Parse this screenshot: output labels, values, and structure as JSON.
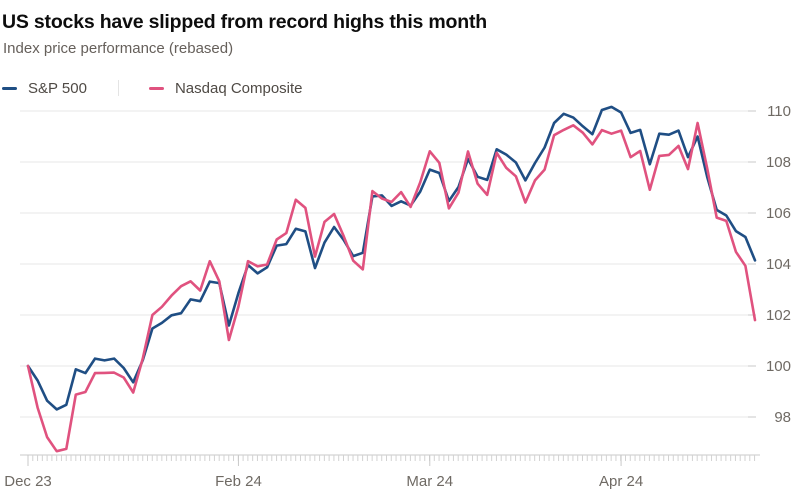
{
  "colors": {
    "background": "#ffffff",
    "grid": "#e7e7e7",
    "axis": "#c9c9c9",
    "minor_tick": "#d2d2d2",
    "axis_label": "#6f6a64",
    "title": "#0d0d0d",
    "subtitle": "#66605b",
    "legend_text": "#4f4a45",
    "sp500": "#1f4e84",
    "nasdaq": "#e0527f"
  },
  "chart_data": {
    "type": "line",
    "title": "US stocks have slipped from record highs this month",
    "subtitle": "Index price performance (rebased)",
    "legend_position": "top-left",
    "grid": "horizontal",
    "y_axis_side": "right",
    "ylim": [
      96.4,
      110.6
    ],
    "y_ticks": [
      98,
      100,
      102,
      104,
      106,
      108,
      110
    ],
    "x_minor_ticks": "daily",
    "x_tick_labels": [
      {
        "label": "Dec 23",
        "index": 0
      },
      {
        "label": "Feb 24",
        "index": 22
      },
      {
        "label": "Mar 24",
        "index": 42
      },
      {
        "label": "Apr 24",
        "index": 62
      }
    ],
    "dates": [
      "2023-12-29",
      "2024-01-02",
      "2024-01-03",
      "2024-01-04",
      "2024-01-05",
      "2024-01-08",
      "2024-01-09",
      "2024-01-10",
      "2024-01-11",
      "2024-01-12",
      "2024-01-16",
      "2024-01-17",
      "2024-01-18",
      "2024-01-19",
      "2024-01-22",
      "2024-01-23",
      "2024-01-24",
      "2024-01-25",
      "2024-01-26",
      "2024-01-29",
      "2024-01-30",
      "2024-01-31",
      "2024-02-01",
      "2024-02-02",
      "2024-02-05",
      "2024-02-06",
      "2024-02-07",
      "2024-02-08",
      "2024-02-09",
      "2024-02-12",
      "2024-02-13",
      "2024-02-14",
      "2024-02-15",
      "2024-02-16",
      "2024-02-20",
      "2024-02-21",
      "2024-02-22",
      "2024-02-23",
      "2024-02-26",
      "2024-02-27",
      "2024-02-28",
      "2024-02-29",
      "2024-03-01",
      "2024-03-04",
      "2024-03-05",
      "2024-03-06",
      "2024-03-07",
      "2024-03-08",
      "2024-03-11",
      "2024-03-12",
      "2024-03-13",
      "2024-03-14",
      "2024-03-15",
      "2024-03-18",
      "2024-03-19",
      "2024-03-20",
      "2024-03-21",
      "2024-03-22",
      "2024-03-25",
      "2024-03-26",
      "2024-03-27",
      "2024-03-28",
      "2024-04-01",
      "2024-04-02",
      "2024-04-03",
      "2024-04-04",
      "2024-04-05",
      "2024-04-08",
      "2024-04-09",
      "2024-04-10",
      "2024-04-11",
      "2024-04-12",
      "2024-04-15",
      "2024-04-16",
      "2024-04-17",
      "2024-04-18",
      "2024-04-19"
    ],
    "series": [
      {
        "name": "S&P 500",
        "color": "#1f4e84",
        "values": [
          100,
          99.43,
          98.64,
          98.3,
          98.48,
          99.87,
          99.72,
          100.29,
          100.22,
          100.29,
          99.92,
          99.36,
          100.23,
          101.47,
          101.69,
          101.99,
          102.07,
          102.61,
          102.54,
          103.31,
          103.25,
          101.59,
          102.86,
          103.96,
          103.63,
          103.87,
          104.72,
          104.78,
          105.38,
          105.28,
          103.84,
          104.84,
          105.45,
          104.94,
          104.31,
          104.44,
          106.65,
          106.69,
          106.28,
          106.46,
          106.29,
          106.84,
          107.7,
          107.57,
          106.47,
          107.02,
          108.12,
          107.42,
          107.3,
          108.5,
          108.29,
          107.98,
          107.28,
          107.96,
          108.57,
          109.53,
          109.89,
          109.74,
          109.4,
          109.09,
          110.04,
          110.16,
          109.94,
          109.14,
          109.26,
          107.91,
          109.11,
          109.07,
          109.23,
          108.19,
          109.0,
          107.41,
          106.12,
          105.9,
          105.29,
          105.06,
          104.14
        ]
      },
      {
        "name": "Nasdaq Composite",
        "color": "#e0527f",
        "values": [
          100,
          98.37,
          97.21,
          96.66,
          96.75,
          98.88,
          98.98,
          99.72,
          99.73,
          99.74,
          99.55,
          98.96,
          100.3,
          102.0,
          102.32,
          102.76,
          103.13,
          103.32,
          102.96,
          104.11,
          103.32,
          101.02,
          102.33,
          104.11,
          103.91,
          103.98,
          104.96,
          105.21,
          106.52,
          106.2,
          104.29,
          105.65,
          105.96,
          105.09,
          104.13,
          103.79,
          106.86,
          106.57,
          106.43,
          106.82,
          106.24,
          107.2,
          108.42,
          107.97,
          106.18,
          106.8,
          108.41,
          107.15,
          106.71,
          108.36,
          107.77,
          107.44,
          106.41,
          107.28,
          107.7,
          109.05,
          109.26,
          109.44,
          109.15,
          108.69,
          109.25,
          109.11,
          109.23,
          108.19,
          108.43,
          106.91,
          108.24,
          108.28,
          108.63,
          107.72,
          109.53,
          107.75,
          105.82,
          105.69,
          104.48,
          103.93,
          101.8
        ]
      }
    ]
  }
}
